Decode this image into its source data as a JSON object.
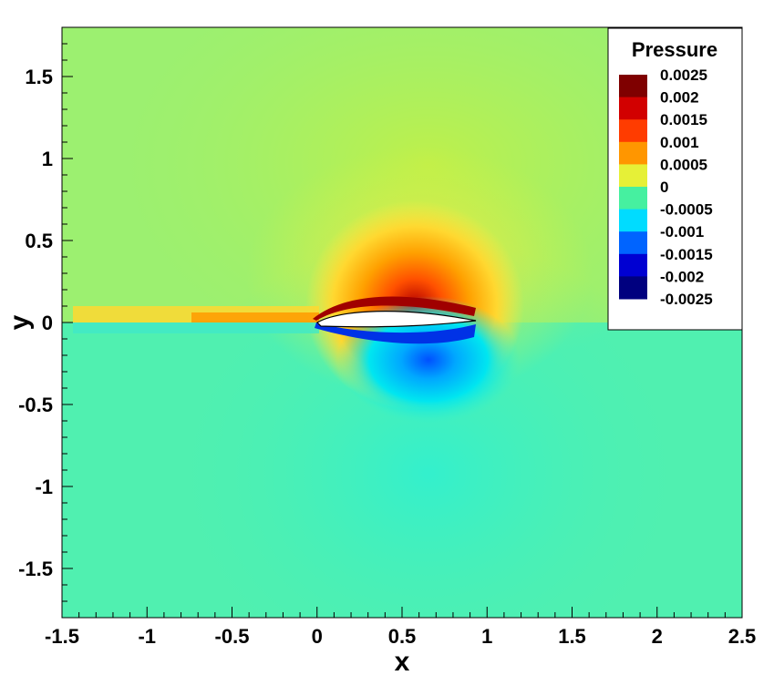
{
  "chart_data": {
    "type": "heatmap",
    "title": "",
    "xlabel": "x",
    "ylabel": "y",
    "xlim": [
      -1.5,
      2.5
    ],
    "ylim": [
      -1.8,
      1.8
    ],
    "xticks": [
      -1.5,
      -1,
      -0.5,
      0,
      0.5,
      1,
      1.5,
      2,
      2.5
    ],
    "xtick_labels": [
      "-1.5",
      "-1",
      "-0.5",
      "0",
      "0.5",
      "1",
      "1.5",
      "2",
      "2.5"
    ],
    "yticks": [
      1.5,
      1,
      0.5,
      0,
      -0.5,
      -1,
      -1.5
    ],
    "ytick_labels": [
      "1.5",
      "1",
      "0.5",
      "0",
      "-0.5",
      "-1",
      "-1.5"
    ],
    "colorbar": {
      "title": "Pressure",
      "range": [
        -0.0025,
        0.0025
      ],
      "levels": [
        0.0025,
        0.002,
        0.0015,
        0.001,
        0.0005,
        0,
        -0.0005,
        -0.001,
        -0.0015,
        -0.002,
        -0.0025
      ],
      "labels": [
        "0.0025",
        "0.002",
        "0.0015",
        "0.001",
        "0.0005",
        "0",
        "-0.0005",
        "-0.001",
        "-0.0015",
        "-0.002",
        "-0.0025"
      ],
      "colors": [
        "#7f0000",
        "#d20000",
        "#ff3c00",
        "#ff9600",
        "#e6f037",
        "#46f0a0",
        "#00dcff",
        "#0064ff",
        "#0000d2",
        "#00007f"
      ],
      "placement": "top-right"
    },
    "body": {
      "shape": "airfoil",
      "leading_edge_x": 0,
      "trailing_edge_x": 0.93,
      "fill": "#ffffff"
    },
    "field_notes": "positive pressure above airfoil, negative pressure below, background near zero"
  }
}
